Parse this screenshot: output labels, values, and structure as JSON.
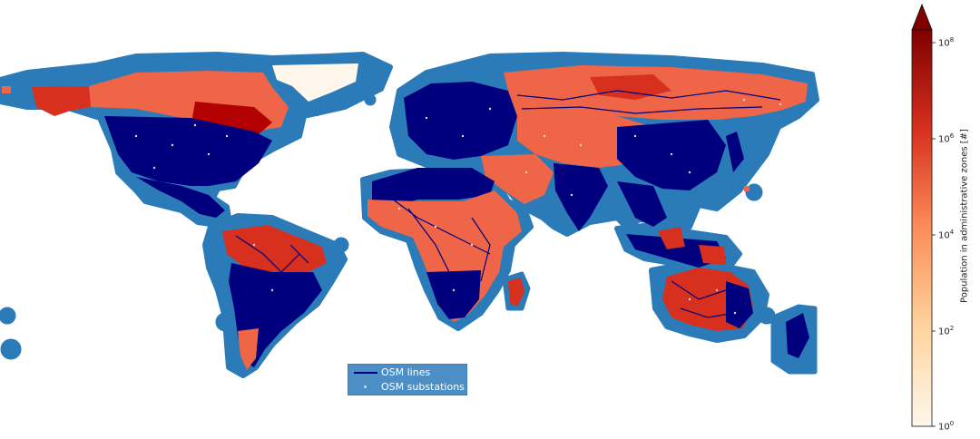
{
  "map": {
    "ocean_buffer_color": "#2a7bb7",
    "lines_color": "#00007f",
    "substation_color": "#f4d4c6"
  },
  "legend": {
    "items": [
      {
        "label": "OSM lines",
        "symbol": "line"
      },
      {
        "label": "OSM substations",
        "symbol": "dot"
      }
    ]
  },
  "colorbar": {
    "label": "Population in administrative zones [#]",
    "colormap": "OrRd",
    "extend": "max",
    "ticks": [
      {
        "base": "10",
        "exp": "8"
      },
      {
        "base": "10",
        "exp": "6"
      },
      {
        "base": "10",
        "exp": "4"
      },
      {
        "base": "10",
        "exp": "2"
      },
      {
        "base": "10",
        "exp": "0"
      }
    ]
  }
}
